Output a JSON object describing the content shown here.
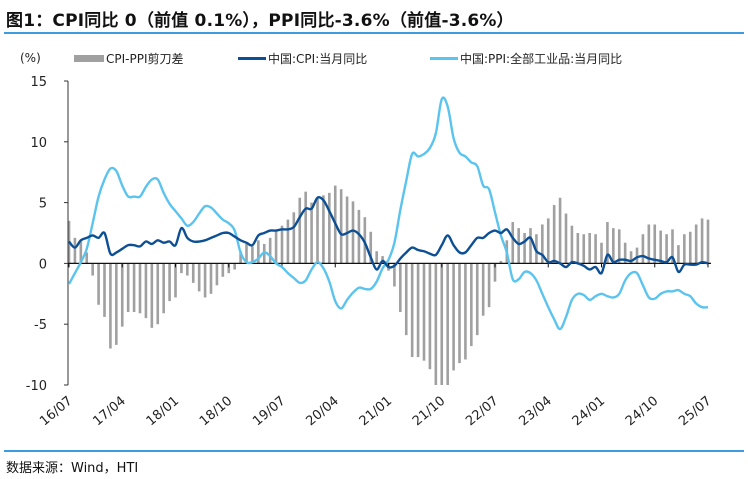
{
  "title": "图1：CPI同比 0（前值 0.1%），PPI同比-3.6%（前值-3.6%）",
  "source": "数据来源：Wind，HTI",
  "colors": {
    "gap": "#a0a0a0",
    "cpi": "#0d4f94",
    "ppi": "#5bc4ee",
    "rule": "#3d9be0"
  },
  "chart_data": {
    "type": "bar+line",
    "unit_label": "(%)",
    "ylim": [
      -10,
      15
    ],
    "yticks": [
      15,
      10,
      5,
      0,
      -5,
      -10
    ],
    "xtick_labels": [
      "16/07",
      "17/04",
      "18/01",
      "18/10",
      "19/07",
      "20/04",
      "21/01",
      "21/10",
      "22/07",
      "23/04",
      "24/01",
      "24/10",
      "25/07"
    ],
    "x_start": "2016-07",
    "x_end": "2025-07",
    "legend_position": "top",
    "grid": false,
    "series": [
      {
        "name": "CPI-PPI剪刀差",
        "type": "bar",
        "values": [
          3.5,
          2.1,
          1.8,
          0.9,
          -1.0,
          -3.4,
          -4.4,
          -7.0,
          -6.7,
          -5.2,
          -4.0,
          -4.0,
          -4.1,
          -4.5,
          -5.3,
          -5.0,
          -4.1,
          -3.1,
          -2.8,
          -0.8,
          -1.0,
          -1.6,
          -2.3,
          -2.8,
          -2.5,
          -1.8,
          -1.1,
          -0.8,
          -0.5,
          1.0,
          1.6,
          1.4,
          1.9,
          1.6,
          2.1,
          2.7,
          3.1,
          3.6,
          4.2,
          5.4,
          5.9,
          5.0,
          5.3,
          5.6,
          5.8,
          6.4,
          6.1,
          5.5,
          5.1,
          4.4,
          3.8,
          2.6,
          1.0,
          0.6,
          -0.6,
          -1.9,
          -4.0,
          -5.9,
          -7.7,
          -7.7,
          -8.0,
          -8.7,
          -10.0,
          -10.2,
          -10.1,
          -8.8,
          -8.2,
          -7.9,
          -6.8,
          -5.9,
          -4.3,
          -3.6,
          -1.5,
          0.2,
          1.9,
          3.4,
          2.9,
          2.5,
          2.9,
          2.4,
          3.2,
          3.7,
          4.8,
          5.4,
          4.1,
          3.1,
          2.5,
          2.4,
          2.5,
          2.4,
          1.7,
          3.4,
          2.9,
          2.8,
          1.7,
          1.0,
          1.3,
          2.4,
          3.2,
          3.2,
          2.7,
          2.4,
          2.8,
          1.5,
          2.4,
          2.6,
          3.2,
          3.7,
          3.6
        ]
      },
      {
        "name": "中国:CPI:当月同比",
        "type": "line",
        "values": [
          1.8,
          1.3,
          1.9,
          2.1,
          2.3,
          2.1,
          2.5,
          0.8,
          0.9,
          1.2,
          1.5,
          1.5,
          1.4,
          1.8,
          1.6,
          1.9,
          1.7,
          1.8,
          1.5,
          2.9,
          2.1,
          1.8,
          1.8,
          1.9,
          2.1,
          2.3,
          2.5,
          2.5,
          2.2,
          1.9,
          1.7,
          1.5,
          2.3,
          2.5,
          2.7,
          2.7,
          2.8,
          2.8,
          3.0,
          3.8,
          4.5,
          4.5,
          5.4,
          5.2,
          4.3,
          3.3,
          2.4,
          2.5,
          2.7,
          2.4,
          1.7,
          0.5,
          -0.5,
          0.2,
          -0.3,
          -0.2,
          0.4,
          0.9,
          1.3,
          1.1,
          1.0,
          0.8,
          0.7,
          1.5,
          2.3,
          1.5,
          0.9,
          0.9,
          1.5,
          2.1,
          2.1,
          2.5,
          2.7,
          2.5,
          2.8,
          2.1,
          1.6,
          1.8,
          2.1,
          1.0,
          0.7,
          0.1,
          0.2,
          0.0,
          -0.3,
          0.1,
          0.0,
          -0.2,
          -0.5,
          -0.3,
          -0.8,
          0.7,
          0.1,
          0.3,
          0.3,
          0.2,
          0.5,
          0.6,
          0.4,
          0.3,
          0.2,
          0.1,
          0.5,
          -0.7,
          -0.1,
          -0.1,
          -0.1,
          0.1,
          0.0
        ]
      },
      {
        "name": "中国:PPI:全部工业品:当月同比",
        "type": "line",
        "values": [
          -1.7,
          -0.8,
          0.1,
          1.2,
          3.3,
          5.5,
          6.9,
          7.8,
          7.6,
          6.4,
          5.5,
          5.5,
          5.5,
          6.3,
          6.9,
          6.9,
          5.8,
          4.9,
          4.3,
          3.7,
          3.1,
          3.4,
          4.1,
          4.7,
          4.6,
          4.1,
          3.6,
          3.3,
          2.7,
          0.9,
          0.1,
          0.1,
          0.4,
          0.9,
          0.6,
          0.0,
          -0.3,
          -0.8,
          -1.2,
          -1.6,
          -1.4,
          -0.5,
          0.1,
          -0.4,
          -1.5,
          -3.1,
          -3.7,
          -3.0,
          -2.4,
          -2.0,
          -2.1,
          -2.1,
          -1.5,
          -0.4,
          0.3,
          1.7,
          4.4,
          6.8,
          9.0,
          8.8,
          9.0,
          9.5,
          10.7,
          13.5,
          12.9,
          10.3,
          9.1,
          8.8,
          8.3,
          8.0,
          6.4,
          6.1,
          4.2,
          2.3,
          0.9,
          -1.3,
          -1.3,
          -0.7,
          -0.8,
          -1.4,
          -2.5,
          -3.6,
          -4.6,
          -5.4,
          -4.4,
          -3.0,
          -2.5,
          -2.6,
          -3.0,
          -2.7,
          -2.5,
          -2.7,
          -2.8,
          -2.5,
          -1.4,
          -0.8,
          -0.8,
          -1.8,
          -2.8,
          -2.9,
          -2.5,
          -2.3,
          -2.3,
          -2.2,
          -2.5,
          -2.7,
          -3.3,
          -3.6,
          -3.6
        ]
      }
    ]
  }
}
